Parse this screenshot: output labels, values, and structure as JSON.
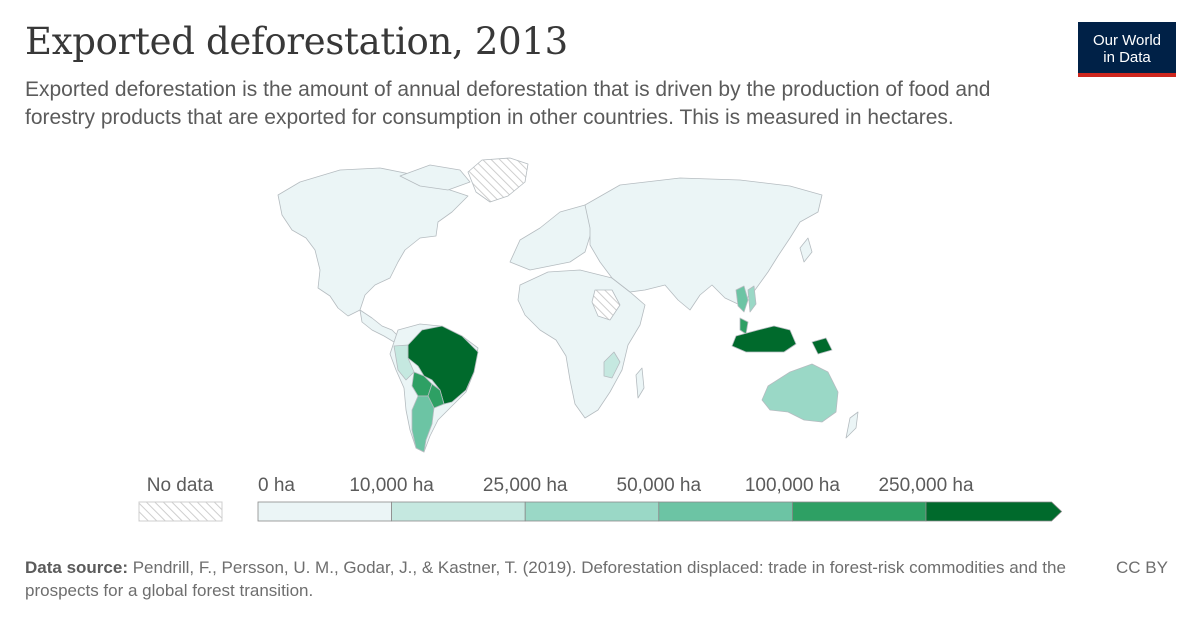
{
  "header": {
    "title": "Exported deforestation, 2013",
    "subtitle": "Exported deforestation is the amount of annual deforestation that is driven by the production of food and forestry products that are exported for consumption in other countries. This is measured in hectares."
  },
  "logo": {
    "line1": "Our World",
    "line2": "in Data"
  },
  "legend": {
    "no_data_label": "No data",
    "bins": [
      {
        "label": "0 ha",
        "color": "#ebf5f6"
      },
      {
        "label": "10,000 ha",
        "color": "#c5e8e0"
      },
      {
        "label": "25,000 ha",
        "color": "#9ad8c6"
      },
      {
        "label": "50,000 ha",
        "color": "#6cc4a4"
      },
      {
        "label": "100,000 ha",
        "color": "#2ea064"
      },
      {
        "label": "250,000 ha",
        "color": "#006a2c"
      }
    ]
  },
  "map_data": {
    "type": "choropleth",
    "regions": [
      {
        "name": "Brazil",
        "bin": 5
      },
      {
        "name": "Indonesia",
        "bin": 5
      },
      {
        "name": "Paraguay",
        "bin": 4
      },
      {
        "name": "Bolivia",
        "bin": 4
      },
      {
        "name": "Argentina",
        "bin": 3
      },
      {
        "name": "Malaysia",
        "bin": 4
      },
      {
        "name": "Papua New Guinea",
        "bin": 5
      },
      {
        "name": "Australia",
        "bin": 2
      },
      {
        "name": "Thailand",
        "bin": 3
      },
      {
        "name": "Vietnam",
        "bin": 2
      },
      {
        "name": "Peru",
        "bin": 1
      },
      {
        "name": "Mozambique",
        "bin": 1
      },
      {
        "name": "Greenland",
        "bin": "no_data"
      },
      {
        "name": "South Sudan",
        "bin": "no_data"
      }
    ],
    "colors": {
      "land": "#ebf5f6",
      "border": "#b5bcc0",
      "no_data_hatch": "#cfcfcf"
    }
  },
  "footer": {
    "source_label": "Data source:",
    "source_text": "Pendrill, F., Persson, U. M., Godar, J., & Kastner, T. (2019). Deforestation displaced: trade in forest-risk commodities and the prospects for a global forest transition.",
    "license": "CC BY"
  }
}
